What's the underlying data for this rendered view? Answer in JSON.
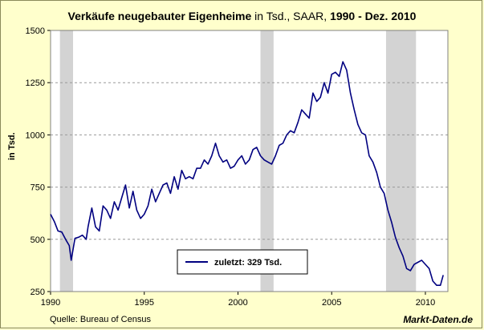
{
  "title": {
    "bold_part": "Verkäufe neugebauter Eigenheime",
    "normal_part": " in Tsd., SAAR, ",
    "bold_range": "1990 - Dez. 2010"
  },
  "source": "Quelle: Bureau of Census",
  "brand": "Markt-Daten.de",
  "chart_data": {
    "type": "line",
    "title": "Verkäufe neugebauter Eigenheime in Tsd., SAAR, 1990 - Dez. 2010",
    "xlabel": "",
    "ylabel": "in Tsd.",
    "xlim": [
      1990,
      2011.2
    ],
    "ylim": [
      250,
      1500
    ],
    "x_ticks": [
      1990,
      1995,
      2000,
      2005,
      2010
    ],
    "y_ticks": [
      250,
      500,
      750,
      1000,
      1250,
      1500
    ],
    "grid": "horizontal dashed",
    "legend": {
      "placement": "bottom-center",
      "label": "zuletzt: 329  Tsd."
    },
    "recessions": [
      [
        1990.5,
        1991.2
      ],
      [
        2001.2,
        2001.9
      ],
      [
        2007.9,
        2009.5
      ]
    ],
    "series": [
      {
        "color": "#000080",
        "x": [
          1990.0,
          1990.2,
          1990.4,
          1990.6,
          1990.8,
          1991.0,
          1991.1,
          1991.3,
          1991.5,
          1991.7,
          1991.9,
          1992.0,
          1992.2,
          1992.4,
          1992.6,
          1992.8,
          1993.0,
          1993.2,
          1993.4,
          1993.6,
          1993.8,
          1994.0,
          1994.2,
          1994.4,
          1994.6,
          1994.8,
          1995.0,
          1995.2,
          1995.4,
          1995.6,
          1995.8,
          1996.0,
          1996.2,
          1996.4,
          1996.6,
          1996.8,
          1997.0,
          1997.2,
          1997.4,
          1997.6,
          1997.8,
          1998.0,
          1998.2,
          1998.4,
          1998.6,
          1998.8,
          1999.0,
          1999.2,
          1999.4,
          1999.6,
          1999.8,
          2000.0,
          2000.2,
          2000.4,
          2000.6,
          2000.8,
          2001.0,
          2001.2,
          2001.4,
          2001.6,
          2001.8,
          2002.0,
          2002.2,
          2002.4,
          2002.6,
          2002.8,
          2003.0,
          2003.2,
          2003.4,
          2003.6,
          2003.8,
          2004.0,
          2004.2,
          2004.4,
          2004.6,
          2004.8,
          2005.0,
          2005.2,
          2005.4,
          2005.6,
          2005.8,
          2006.0,
          2006.2,
          2006.4,
          2006.6,
          2006.8,
          2007.0,
          2007.2,
          2007.4,
          2007.6,
          2007.8,
          2008.0,
          2008.2,
          2008.4,
          2008.6,
          2008.8,
          2009.0,
          2009.2,
          2009.4,
          2009.6,
          2009.8,
          2010.0,
          2010.2,
          2010.4,
          2010.6,
          2010.8,
          2010.95
        ],
        "y": [
          620,
          585,
          540,
          535,
          500,
          470,
          400,
          505,
          510,
          520,
          500,
          560,
          650,
          560,
          540,
          660,
          640,
          600,
          680,
          640,
          700,
          760,
          650,
          730,
          640,
          600,
          620,
          660,
          740,
          680,
          720,
          760,
          770,
          720,
          800,
          740,
          830,
          790,
          800,
          790,
          840,
          840,
          880,
          860,
          900,
          960,
          900,
          870,
          880,
          840,
          850,
          880,
          900,
          860,
          880,
          930,
          940,
          900,
          880,
          870,
          860,
          900,
          950,
          960,
          1000,
          1020,
          1010,
          1060,
          1120,
          1100,
          1080,
          1200,
          1160,
          1180,
          1250,
          1200,
          1290,
          1300,
          1280,
          1350,
          1310,
          1200,
          1120,
          1050,
          1010,
          1000,
          900,
          870,
          820,
          750,
          720,
          640,
          580,
          510,
          460,
          420,
          360,
          350,
          380,
          390,
          400,
          380,
          360,
          300,
          280,
          280,
          329
        ]
      }
    ]
  }
}
